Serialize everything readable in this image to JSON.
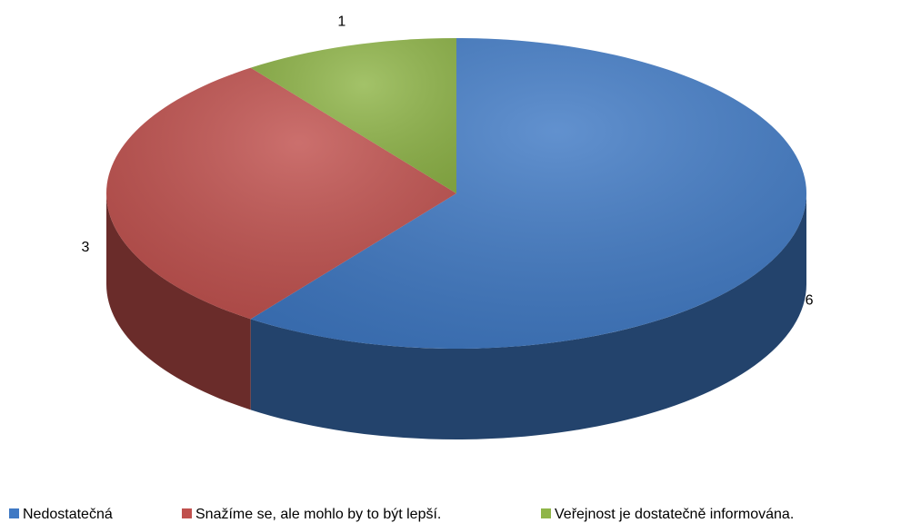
{
  "chart_data": {
    "type": "pie3d",
    "categories": [
      "Nedostatečná",
      "Snažíme se, ale mohlo by to být lepší.",
      "Veřejnost je dostatečně informována."
    ],
    "values": [
      6,
      3,
      1
    ],
    "colors": [
      "#3f79c4",
      "#c0504d",
      "#8fb548"
    ],
    "legend": "bottom"
  }
}
